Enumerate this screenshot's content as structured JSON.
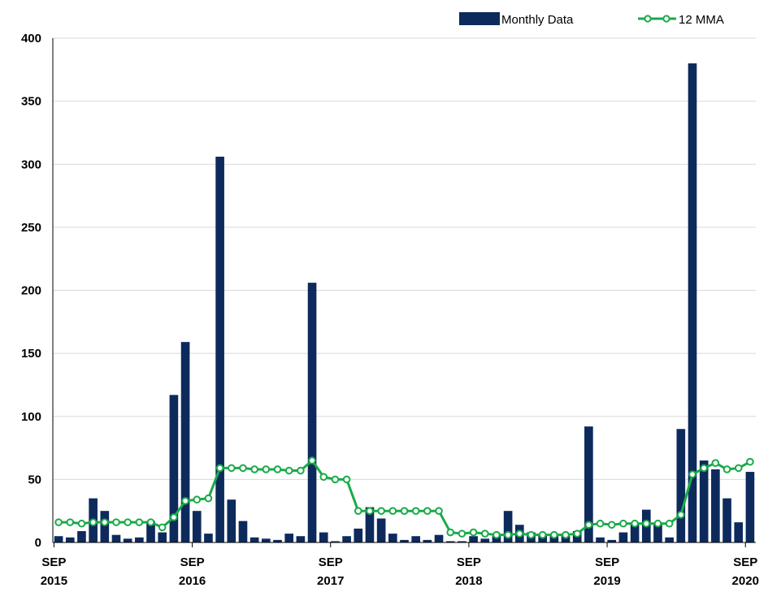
{
  "chart_data": {
    "type": "bar",
    "title": "",
    "xlabel": "",
    "ylabel": "",
    "ylim": [
      0,
      400
    ],
    "yticks": [
      "0",
      "50",
      "100",
      "150",
      "200",
      "250",
      "300",
      "350",
      "400"
    ],
    "xtick_labels": [
      {
        "month": "SEP",
        "year": "2015",
        "index": 0
      },
      {
        "month": "SEP",
        "year": "2016",
        "index": 12
      },
      {
        "month": "SEP",
        "year": "2017",
        "index": 24
      },
      {
        "month": "SEP",
        "year": "2018",
        "index": 36
      },
      {
        "month": "SEP",
        "year": "2019",
        "index": 48
      },
      {
        "month": "SEP",
        "year": "2020",
        "index": 60
      }
    ],
    "x_start": "2015-09",
    "x_end": "2020-09",
    "grid": true,
    "legend_position": "top-right",
    "series": [
      {
        "name": "Monthly Data",
        "type": "bar",
        "color": "#0d2a5c",
        "values": [
          5,
          4,
          9,
          35,
          25,
          6,
          3,
          4,
          17,
          8,
          117,
          159,
          25,
          7,
          306,
          34,
          17,
          4,
          3,
          2,
          7,
          5,
          206,
          8,
          1,
          5,
          11,
          28,
          19,
          7,
          2,
          5,
          2,
          6,
          1,
          1,
          5,
          3,
          5,
          25,
          14,
          8,
          6,
          5,
          5,
          9,
          92,
          4,
          2,
          8,
          14,
          26,
          15,
          4,
          90,
          380,
          65,
          58,
          35,
          16,
          56
        ]
      },
      {
        "name": "12 MMA",
        "type": "line",
        "color": "#1aaa4a",
        "values": [
          16,
          16,
          15,
          16,
          16,
          16,
          16,
          16,
          16,
          12,
          20,
          33,
          34,
          35,
          59,
          59,
          59,
          58,
          58,
          58,
          57,
          57,
          65,
          52,
          50,
          50,
          25,
          25,
          25,
          25,
          25,
          25,
          25,
          25,
          8,
          7,
          8,
          7,
          6,
          6,
          7,
          6,
          6,
          6,
          6,
          7,
          14,
          15,
          14,
          15,
          15,
          15,
          15,
          15,
          22,
          54,
          59,
          63,
          58,
          59,
          64
        ]
      }
    ]
  }
}
